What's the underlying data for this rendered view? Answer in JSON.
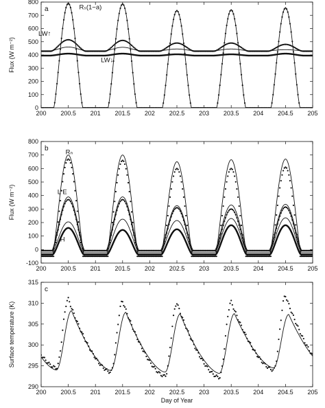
{
  "chart_data": [
    {
      "type": "line",
      "panel_letter": "a",
      "ylabel": "Flux (W m⁻²)",
      "xlim": [
        200,
        205
      ],
      "ylim": [
        0,
        800
      ],
      "xticks": [
        200,
        200.5,
        201,
        201.5,
        202,
        202.5,
        203,
        203.5,
        204,
        204.5,
        205
      ],
      "yticks": [
        0,
        100,
        200,
        300,
        400,
        500,
        600,
        700,
        800
      ],
      "grid": false,
      "series": [
        {
          "name": "Rₛ(1−a)",
          "key": "Rs",
          "style": "line+dots",
          "peaks": [
            790,
            785,
            735,
            740,
            755
          ],
          "night": 0
        },
        {
          "name": "LW↑",
          "key": "LWup",
          "style": "line+dots",
          "peaks": [
            515,
            510,
            490,
            490,
            480
          ],
          "night": 428
        },
        {
          "name": "LW↓",
          "key": "LWdown",
          "style": "thick",
          "peaks": [
            410,
            410,
            405,
            405,
            410
          ],
          "night": 395
        },
        {
          "name": "",
          "key": "LWup_model",
          "style": "line",
          "peaks": [
            460,
            458,
            445,
            445,
            440
          ],
          "night": 432
        }
      ],
      "annotations": [
        {
          "text": "Rₛ(1−a)",
          "x": 200.7,
          "y": 745
        },
        {
          "text": "LW↑",
          "x": 199.95,
          "y": 545
        },
        {
          "text": "LW↓",
          "x": 201.1,
          "y": 345
        }
      ]
    },
    {
      "type": "line",
      "panel_letter": "b",
      "ylabel": "Flux (W m⁻²)",
      "xlim": [
        200,
        205
      ],
      "ylim": [
        -100,
        800
      ],
      "xticks": [
        200,
        200.5,
        201,
        201.5,
        202,
        202.5,
        203,
        203.5,
        204,
        204.5,
        205
      ],
      "yticks": [
        -100,
        0,
        100,
        200,
        300,
        400,
        500,
        600,
        700,
        800
      ],
      "grid": false,
      "series": [
        {
          "name": "Rₙ",
          "key": "Rn_model",
          "style": "line",
          "peaks": [
            700,
            700,
            650,
            665,
            670
          ],
          "night": -45
        },
        {
          "name": "",
          "key": "Rn_obs",
          "style": "dots",
          "peaks": [
            670,
            660,
            600,
            600,
            610
          ],
          "night": -50
        },
        {
          "name": "L E",
          "key": "LE_model",
          "style": "line",
          "peaks": [
            390,
            390,
            325,
            330,
            335
          ],
          "night": -5
        },
        {
          "name": "",
          "key": "LE_obs",
          "style": "line+dots",
          "peaks": [
            370,
            370,
            310,
            300,
            315
          ],
          "night": -8
        },
        {
          "name": "H",
          "key": "H_model",
          "style": "line",
          "peaks": [
            205,
            225,
            215,
            230,
            235
          ],
          "night": -20
        },
        {
          "name": "",
          "key": "H_obs",
          "style": "thick+dots",
          "peaks": [
            160,
            145,
            150,
            180,
            180
          ],
          "night": -35
        }
      ],
      "annotations": [
        {
          "text": "Rₙ",
          "x": 200.45,
          "y": 705
        },
        {
          "text": "L E",
          "x": 200.3,
          "y": 410
        },
        {
          "text": "H",
          "x": 200.35,
          "y": 60
        }
      ]
    },
    {
      "type": "line",
      "panel_letter": "c",
      "ylabel": "Surface temperature (K)",
      "xlabel": "Day of Year",
      "xlim": [
        200,
        205
      ],
      "ylim": [
        290,
        315
      ],
      "xticks": [
        200,
        200.5,
        201,
        201.5,
        202,
        202.5,
        203,
        203.5,
        204,
        204.5,
        205
      ],
      "yticks": [
        290,
        295,
        300,
        305,
        310,
        315
      ],
      "grid": false,
      "series": [
        {
          "name": "",
          "key": "Ts_model",
          "style": "line",
          "peaks": [
            308.2,
            307.8,
            307.4,
            307.5,
            307.3
          ],
          "night": [
            294.0,
            293.9,
            293.5,
            293.2,
            294.5
          ]
        },
        {
          "name": "",
          "key": "Ts_obs",
          "style": "dots",
          "peaks": [
            311.0,
            310.5,
            310.0,
            310.3,
            311.8
          ],
          "night": [
            294.5,
            293.5,
            292.5,
            292.2,
            294.0
          ]
        }
      ]
    }
  ]
}
